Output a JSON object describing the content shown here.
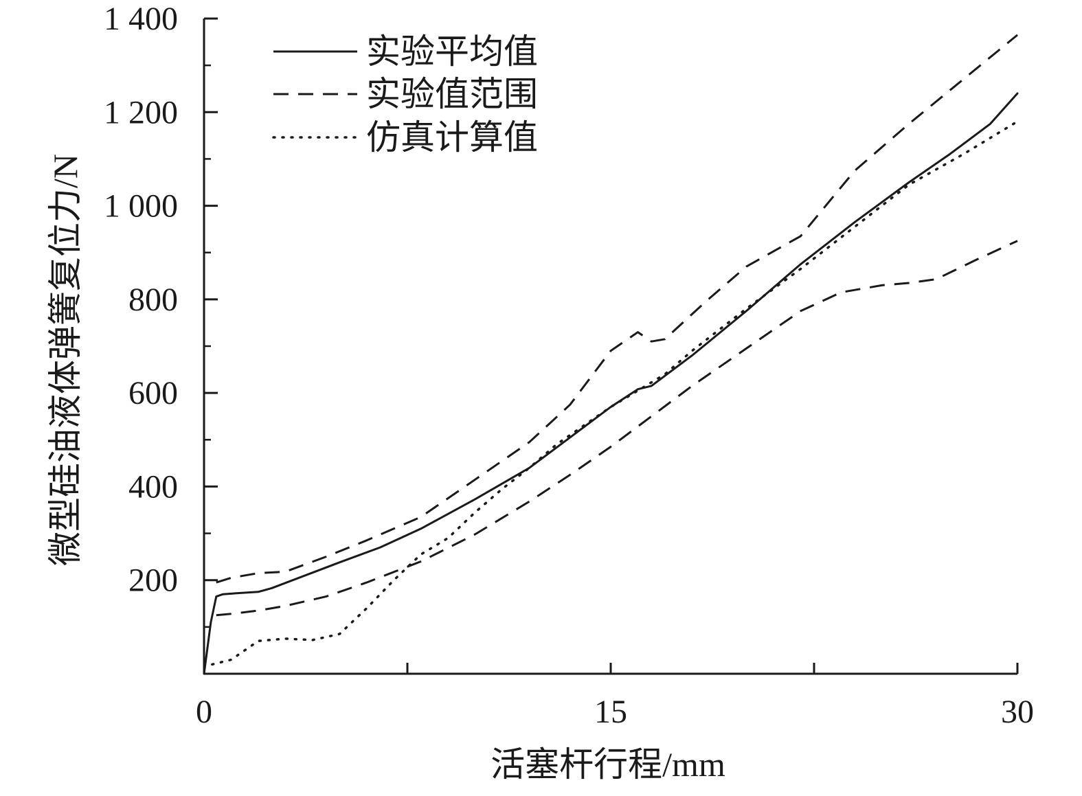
{
  "chart_data": {
    "type": "line",
    "xlabel": "活塞杆行程/mm",
    "ylabel": "微型硅油液体弹簧复位力/N",
    "xlim": [
      0,
      30
    ],
    "ylim": [
      0,
      1400
    ],
    "x_ticks": [
      0,
      7.5,
      15,
      22.5,
      30
    ],
    "x_tick_labels": [
      "0",
      "",
      "15",
      "",
      "30"
    ],
    "y_ticks": [
      200,
      400,
      600,
      800,
      1000,
      1200,
      1400
    ],
    "y_tick_labels": [
      "200",
      "400",
      "600",
      "800",
      "1 000",
      "1 200",
      "1 400"
    ],
    "y_minor_ticks": [
      100,
      300,
      500,
      700,
      900,
      1100,
      1300
    ],
    "grid": false,
    "legend_position": "top-left",
    "color": "#1a1a1a",
    "series": [
      {
        "name": "实验平均值",
        "style": "solid",
        "x": [
          0,
          0.25,
          0.45,
          0.7,
          1.2,
          2.0,
          2.5,
          3.5,
          5.0,
          6.5,
          8.0,
          10.0,
          12.0,
          13.5,
          15.0,
          16.0,
          16.5,
          18.0,
          20.0,
          22.0,
          24.0,
          26.0,
          27.5,
          29.0,
          30.0
        ],
        "y": [
          0,
          110,
          165,
          170,
          172,
          175,
          183,
          205,
          238,
          270,
          310,
          373,
          440,
          505,
          570,
          608,
          615,
          680,
          775,
          875,
          965,
          1050,
          1110,
          1175,
          1240
        ]
      },
      {
        "name": "实验值范围",
        "style": "dashed",
        "x": [
          0.45,
          1.0,
          2.0,
          3.0,
          4.5,
          6.0,
          8.0,
          10.0,
          12.0,
          13.5,
          15.0,
          16.0,
          16.5,
          17.0,
          18.5,
          20.0,
          22.0,
          24.0,
          26.0,
          28.0,
          30.0
        ],
        "y": [
          195,
          205,
          215,
          218,
          250,
          285,
          335,
          415,
          495,
          575,
          690,
          730,
          710,
          715,
          795,
          870,
          935,
          1075,
          1175,
          1270,
          1365
        ]
      },
      {
        "name": "实验值范围",
        "style": "dashed",
        "x": [
          0.45,
          1.0,
          2.0,
          3.0,
          4.5,
          6.0,
          8.0,
          10.0,
          12.0,
          13.5,
          15.0,
          16.5,
          18.0,
          20.0,
          22.0,
          23.5,
          25.0,
          26.0,
          27.0,
          28.5,
          30.0
        ],
        "y": [
          125,
          128,
          135,
          145,
          165,
          195,
          240,
          298,
          368,
          425,
          485,
          550,
          615,
          695,
          775,
          815,
          830,
          835,
          843,
          885,
          925
        ]
      },
      {
        "name": "仿真计算值",
        "style": "dotted",
        "x": [
          0.3,
          1.0,
          2.0,
          3.0,
          4.0,
          5.0,
          6.0,
          7.0,
          8.0,
          9.0,
          10.0,
          11.0,
          12.0,
          13.0,
          14.0,
          15.0,
          16.0,
          17.0,
          18.0,
          19.0,
          20.0,
          22.0,
          24.0,
          26.0,
          28.0,
          30.0
        ],
        "y": [
          20,
          30,
          70,
          75,
          72,
          85,
          140,
          200,
          255,
          290,
          345,
          395,
          440,
          490,
          530,
          570,
          605,
          640,
          690,
          735,
          780,
          865,
          955,
          1045,
          1110,
          1180
        ]
      }
    ],
    "legend": [
      {
        "label": "实验平均值",
        "style": "solid"
      },
      {
        "label": "实验值范围",
        "style": "dashed"
      },
      {
        "label": "仿真计算值",
        "style": "dotted"
      }
    ]
  }
}
